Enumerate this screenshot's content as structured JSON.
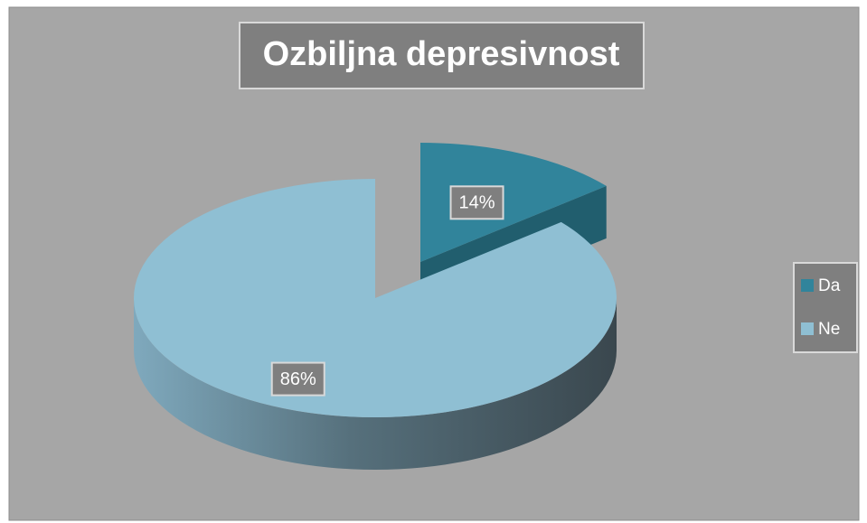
{
  "chart_data": {
    "type": "pie",
    "title": "Ozbiljna depresivnost",
    "categories": [
      "Da",
      "Ne"
    ],
    "values": [
      14,
      86
    ],
    "value_labels": [
      "14%",
      "86%"
    ],
    "colors": [
      "#31849b",
      "#8fbfd3"
    ],
    "legend": "right"
  }
}
